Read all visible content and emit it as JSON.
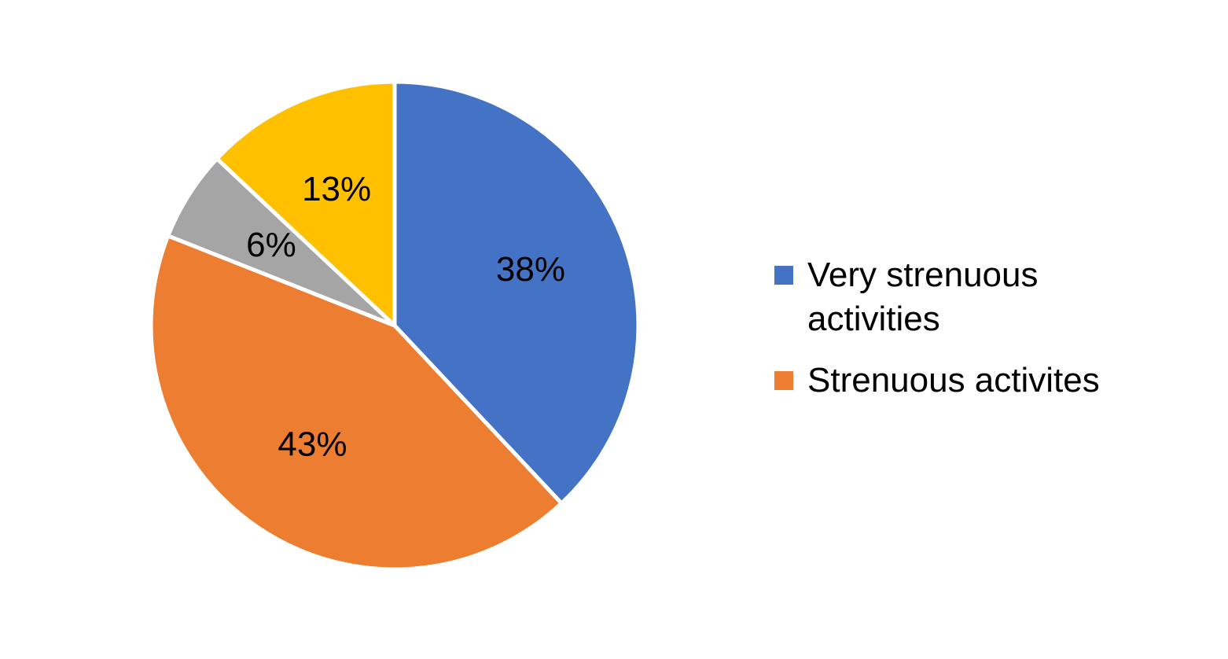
{
  "chart_data": {
    "type": "pie",
    "categories": [
      "Very strenuous activities",
      "Strenuous activites",
      null,
      null
    ],
    "values": [
      38,
      43,
      6,
      13
    ],
    "value_labels": [
      "38%",
      "43%",
      "6%",
      "13%"
    ],
    "colors": [
      "#4472c4",
      "#ed7d31",
      "#a5a5a5",
      "#ffc000"
    ],
    "legend": "right"
  }
}
